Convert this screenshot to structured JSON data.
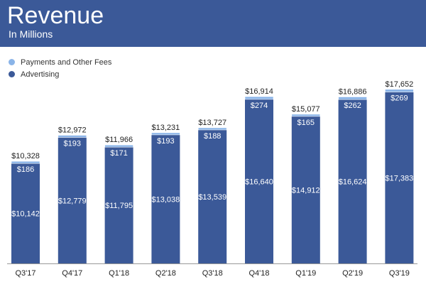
{
  "header": {
    "title": "Revenue",
    "subtitle": "In Millions"
  },
  "colors": {
    "header_bg": "#3b5998",
    "advertising": "#3b5998",
    "payments": "#8ab4e8",
    "axis": "#999999"
  },
  "chart_data": {
    "type": "bar",
    "stacked": true,
    "categories": [
      "Q3'17",
      "Q4'17",
      "Q1'18",
      "Q2'18",
      "Q3'18",
      "Q4'18",
      "Q1'19",
      "Q2'19",
      "Q3'19"
    ],
    "series": [
      {
        "name": "Advertising",
        "values": [
          10142,
          12779,
          11795,
          13038,
          13539,
          16640,
          14912,
          16624,
          17383
        ],
        "labels": [
          "$10,142",
          "$12,779",
          "$11,795",
          "$13,038",
          "$13,539",
          "$16,640",
          "$14,912",
          "$16,624",
          "$17,383"
        ]
      },
      {
        "name": "Payments and Other Fees",
        "values": [
          186,
          193,
          171,
          193,
          188,
          274,
          165,
          262,
          269
        ],
        "labels": [
          "$186",
          "$193",
          "$171",
          "$193",
          "$188",
          "$274",
          "$165",
          "$262",
          "$269"
        ]
      }
    ],
    "totals": [
      10328,
      12972,
      11966,
      13231,
      13727,
      16914,
      15077,
      16886,
      17652
    ],
    "total_labels": [
      "$10,328",
      "$12,972",
      "$11,966",
      "$13,231",
      "$13,727",
      "$16,914",
      "$15,077",
      "$16,886",
      "$17,652"
    ],
    "legend": {
      "position": "top-left"
    },
    "grid": false,
    "ylim": [
      0,
      18000
    ]
  }
}
